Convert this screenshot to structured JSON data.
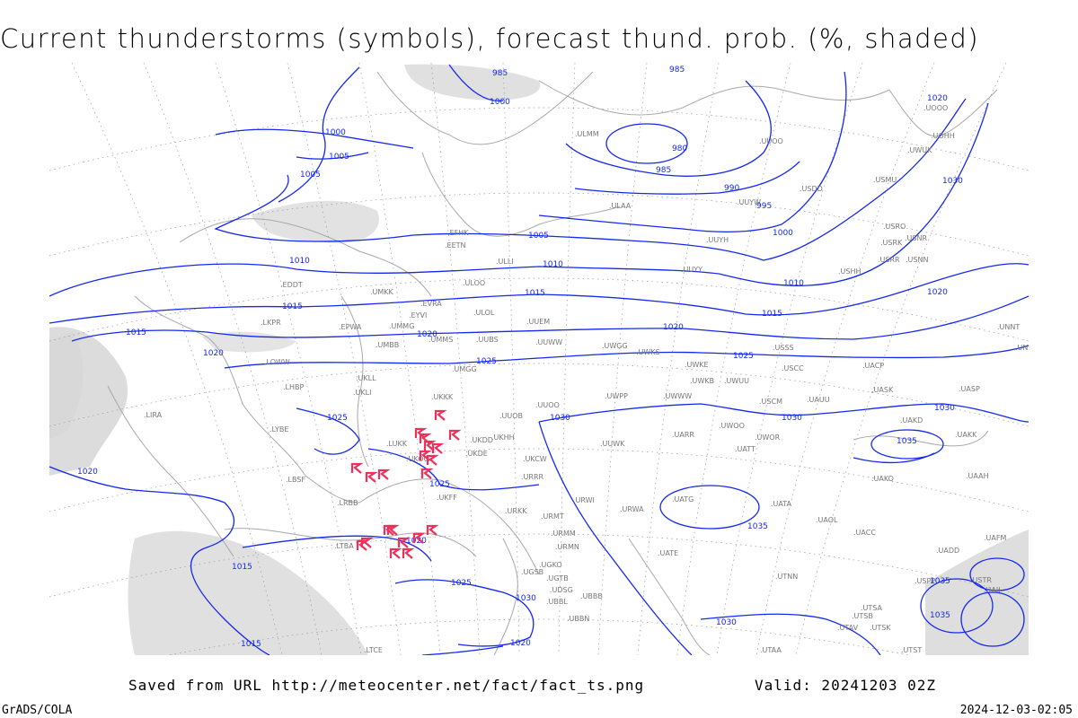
{
  "title": "Current thunderstorms (symbols), forecast thund. prob. (%, shaded)",
  "footer": {
    "saved_from": "Saved from URL http://meteocenter.net/fact/fact_ts.png",
    "valid": "Valid: 20241203 02Z",
    "software": "GrADS/COLA",
    "generated": "2024-12-03-02:05"
  },
  "colors": {
    "isobars": "#1428f0",
    "thunderstorm_symbols": "#f0305a",
    "coastlines": "#a8a8a8",
    "probability_shading": "#d8d8d8"
  },
  "isobar_labels": [
    "985",
    "985",
    "1000",
    "980",
    "985",
    "990",
    "995",
    "1000",
    "1005",
    "1010",
    "1015",
    "1020",
    "1015",
    "1010",
    "1005",
    "1000",
    "1005",
    "1010",
    "1015",
    "1020",
    "1015",
    "1020",
    "1020",
    "1025",
    "1025",
    "1030",
    "1030",
    "1025",
    "1035",
    "1035",
    "1030",
    "1030",
    "1035",
    "1035",
    "1020",
    "1020",
    "1015",
    "1015",
    "1020",
    "1025",
    "1030",
    "1025",
    "1020",
    "1030"
  ],
  "stations": [
    "ULMM",
    "ULAA",
    "UUYY",
    "UUYH",
    "UUYW",
    "USDD",
    "USMU",
    "UOOO",
    "UOHH",
    "UUOO",
    "USRO",
    "USRK",
    "USNR",
    "USRR",
    "USNN",
    "USHH",
    "EFHK",
    "EETN",
    "ULLI",
    "EVRA",
    "ULOO",
    "UMKK",
    "EYVI",
    "UMMG",
    "ULOL",
    "UUEM",
    "UMMS",
    "UMBB",
    "UMGG",
    "UUBS",
    "UUWW",
    "UWGG",
    "UWKS",
    "UWKE",
    "UWKB",
    "UWUU",
    "UWWW",
    "UWPP",
    "UUOO",
    "UUOB",
    "UKKK",
    "UKLL",
    "UKLI",
    "UKHH",
    "UKDD",
    "UKDE",
    "UKCW",
    "URRR",
    "LUKK",
    "UKOO",
    "UKFF",
    "URKK",
    "URWI",
    "URMT",
    "URMM",
    "URMN",
    "UGKO",
    "UGSB",
    "UGTB",
    "UDSG",
    "UBBB",
    "UBBN",
    "UBBL",
    "USSS",
    "USCC",
    "UACP",
    "UASK",
    "UASP",
    "UAUU",
    "USCM",
    "UWOO",
    "UWOR",
    "UATT",
    "UARR",
    "UAKD",
    "UAKK",
    "UAAH",
    "UAKO",
    "UATG",
    "UATA",
    "UAOL",
    "UACC",
    "UADD",
    "UAFM",
    "UATE",
    "UTNN",
    "UTAA",
    "UTAV",
    "UTSK",
    "UTSA",
    "UTSB",
    "UTST",
    "URWA",
    "UUWK",
    "EPWA",
    "LKPR",
    "LOWW",
    "LHBP",
    "LYBE",
    "LBSF",
    "LRBB",
    "LTBA",
    "LIRA",
    "EDDT",
    "UNNT",
    "UNBB",
    "LTCE",
    "UWUK",
    "USPP",
    "USTR",
    "UAII"
  ]
}
